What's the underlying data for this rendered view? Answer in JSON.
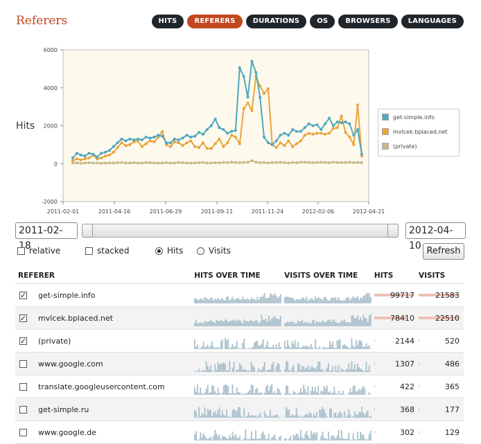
{
  "page": {
    "title": "Referers"
  },
  "tabs": [
    {
      "label": "HITS",
      "active": false
    },
    {
      "label": "REFERERS",
      "active": true
    },
    {
      "label": "DURATIONS",
      "active": false
    },
    {
      "label": "OS",
      "active": false
    },
    {
      "label": "BROWSERS",
      "active": false
    },
    {
      "label": "LANGUAGES",
      "active": false
    }
  ],
  "chart": {
    "ylabel": "Hits"
  },
  "chart_data": {
    "type": "line",
    "ylabel": "Hits",
    "ylim": [
      -2000,
      6000
    ],
    "yticks": [
      "6000",
      "4000",
      "2000",
      "0",
      "-2000"
    ],
    "xticks": [
      "2011-02-01",
      "2011-04-16",
      "2011-06-29",
      "2011-09-11",
      "2011-11-24",
      "2012-02-06",
      "2012-04-21"
    ],
    "grid": false,
    "legend_position": "right",
    "series": [
      {
        "name": "get-simple.info",
        "color": "#4fa8bf",
        "values": [
          300,
          550,
          450,
          400,
          550,
          500,
          350,
          550,
          600,
          700,
          900,
          1100,
          1300,
          1200,
          1300,
          1250,
          1300,
          1250,
          1400,
          1350,
          1400,
          1500,
          1450,
          1100,
          1100,
          1300,
          1250,
          1350,
          1500,
          1400,
          1450,
          1650,
          1550,
          1800,
          2000,
          2350,
          1900,
          1800,
          1600,
          1700,
          1750,
          5050,
          4600,
          3500,
          5400,
          4800,
          3500,
          1400,
          1100,
          1000,
          1200,
          1500,
          1600,
          1500,
          1800,
          1700,
          1700,
          1900,
          2100,
          2000,
          2050,
          1800,
          2100,
          2400,
          2000,
          2200,
          2150,
          2200,
          2100,
          1500,
          1800,
          500
        ]
      },
      {
        "name": "mvlcek.bplaced.net",
        "color": "#e8a33d",
        "values": [
          150,
          250,
          200,
          250,
          300,
          450,
          250,
          300,
          400,
          450,
          600,
          850,
          1100,
          950,
          1000,
          1150,
          1200,
          900,
          1050,
          1200,
          1150,
          1400,
          1700,
          1000,
          900,
          1150,
          1100,
          950,
          1100,
          1200,
          900,
          850,
          1100,
          800,
          800,
          1050,
          1300,
          900,
          1100,
          1500,
          1400,
          1050,
          2900,
          3200,
          2800,
          4600,
          4100,
          3700,
          3950,
          1000,
          850,
          1100,
          950,
          1200,
          900,
          1050,
          1200,
          1500,
          1600,
          1550,
          1600,
          1600,
          1550,
          1600,
          1850,
          1900,
          2500,
          1650,
          1400,
          1000,
          3100,
          400
        ]
      },
      {
        "name": "(private)",
        "color": "#c8b88c",
        "values": [
          30,
          40,
          20,
          30,
          50,
          30,
          40,
          20,
          30,
          40,
          30,
          50,
          60,
          30,
          40,
          50,
          30,
          40,
          60,
          50,
          40,
          30,
          40,
          50,
          30,
          40,
          60,
          50,
          40,
          30,
          40,
          50,
          60,
          40,
          30,
          50,
          40,
          60,
          50,
          80,
          60,
          50,
          60,
          70,
          150,
          80,
          50,
          60,
          40,
          50,
          60,
          70,
          50,
          40,
          60,
          50,
          70,
          80,
          60,
          50,
          60,
          70,
          60,
          50,
          70,
          60,
          50,
          60,
          70,
          50,
          60,
          50
        ]
      }
    ]
  },
  "controls": {
    "start_date": "2011-02-18",
    "end_date": "2012-04-10",
    "options": [
      {
        "label": "relative",
        "type": "checkbox",
        "checked": false
      },
      {
        "label": "stacked",
        "type": "checkbox",
        "checked": false
      },
      {
        "label": "Hits",
        "type": "radio",
        "checked": true
      },
      {
        "label": "Visits",
        "type": "radio",
        "checked": false
      }
    ],
    "refresh_label": "Refresh"
  },
  "table": {
    "headers": [
      "REFERER",
      "HITS OVER TIME",
      "VISITS OVER TIME",
      "HITS",
      "VISITS"
    ],
    "rows": [
      {
        "checked": true,
        "referer": "get-simple.info",
        "hits": "99717",
        "visits": "21583",
        "hits_share": 0.99,
        "visits_share": 0.96
      },
      {
        "checked": true,
        "referer": "mvlcek.bplaced.net",
        "hits": "78410",
        "visits": "22510",
        "hits_share": 0.79,
        "visits_share": 1.0
      },
      {
        "checked": true,
        "referer": "(private)",
        "hits": "2144",
        "visits": "520",
        "hits_share": 0.02,
        "visits_share": 0.02
      },
      {
        "checked": false,
        "referer": "www.google.com",
        "hits": "1307",
        "visits": "486",
        "hits_share": 0.013,
        "visits_share": 0.02
      },
      {
        "checked": false,
        "referer": "translate.googleusercontent.com",
        "hits": "422",
        "visits": "365",
        "hits_share": 0.004,
        "visits_share": 0.016
      },
      {
        "checked": false,
        "referer": "get-simple.ru",
        "hits": "368",
        "visits": "177",
        "hits_share": 0.004,
        "visits_share": 0.008
      },
      {
        "checked": false,
        "referer": "www.google.de",
        "hits": "302",
        "visits": "129",
        "hits_share": 0.003,
        "visits_share": 0.006
      }
    ]
  },
  "colors": {
    "accent": "#c2461e",
    "tab_bg": "#21262a",
    "spark": "#a9bfcb",
    "bar": "#eec0b4",
    "plot_bg": "#fdf9ec"
  }
}
